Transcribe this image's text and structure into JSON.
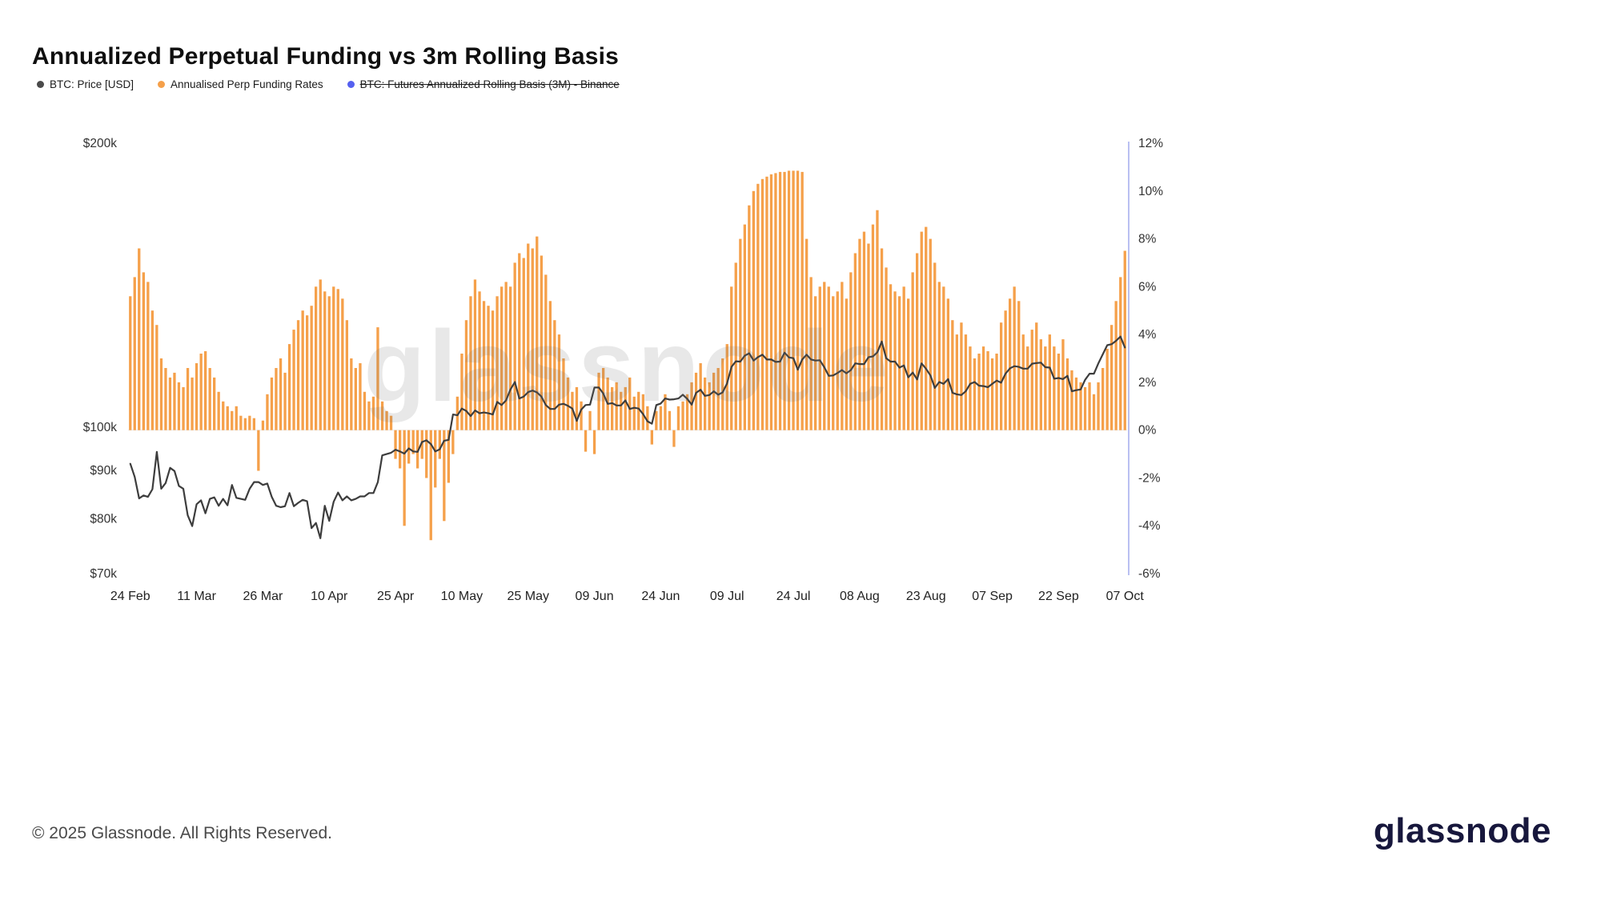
{
  "title": "Annualized Perpetual Funding vs 3m Rolling Basis",
  "watermark": "glassnode",
  "legend": [
    {
      "label": "BTC: Price [USD]",
      "color": "#4a4a4a",
      "disabled": false
    },
    {
      "label": "Annualised Perp Funding Rates",
      "color": "#f5a04a",
      "disabled": false
    },
    {
      "label": "BTC: Futures Annualized Rolling Basis (3M) - Binance",
      "color": "#5560f0",
      "disabled": true
    }
  ],
  "footer": {
    "copyright": "© 2025 Glassnode. All Rights Reserved.",
    "brand": "glassnode"
  },
  "chart_data": {
    "type": "bar",
    "title": "Annualized Perpetual Funding vs 3m Rolling Basis",
    "grid": false,
    "legend_position": "top-left",
    "x_start": "24 Feb",
    "x_end": "07 Oct",
    "x_frequency": "daily",
    "x_count": 226,
    "x_tick_every": 15,
    "x_tick_labels": [
      "24 Feb",
      "11 Mar",
      "26 Mar",
      "10 Apr",
      "25 Apr",
      "10 May",
      "25 May",
      "09 Jun",
      "24 Jun",
      "09 Jul",
      "24 Jul",
      "08 Aug",
      "23 Aug",
      "07 Sep",
      "22 Sep",
      "07 Oct"
    ],
    "left_axis": {
      "unit": "USD",
      "scale": "log",
      "min": 70,
      "max": 200,
      "tick_values": [
        200,
        100,
        90,
        80,
        70
      ],
      "labels": [
        "$200k",
        "$100k",
        "$90k",
        "$80k",
        "$70k"
      ]
    },
    "right_axis": {
      "unit": "%",
      "scale": "linear",
      "min": -6,
      "max": 12,
      "tick_values": [
        12,
        10,
        8,
        6,
        4,
        2,
        0,
        -2,
        -4,
        -6
      ],
      "labels": [
        "12%",
        "10%",
        "8%",
        "6%",
        "4%",
        "2%",
        "0%",
        "-2%",
        "-4%",
        "-6%"
      ]
    },
    "series": [
      {
        "name": "Annualised Perp Funding Rates",
        "type": "bar",
        "axis": "right",
        "color": "#f5a04a",
        "values": [
          5.6,
          6.4,
          7.6,
          6.6,
          6.2,
          5.0,
          4.4,
          3.0,
          2.6,
          2.2,
          2.4,
          2.0,
          1.8,
          2.6,
          2.2,
          2.8,
          3.2,
          3.3,
          2.6,
          2.2,
          1.6,
          1.2,
          1.0,
          0.8,
          1.0,
          0.6,
          0.5,
          0.6,
          0.5,
          -1.7,
          0.4,
          1.5,
          2.2,
          2.6,
          3.0,
          2.4,
          3.6,
          4.2,
          4.6,
          5.0,
          4.8,
          5.2,
          6.0,
          6.3,
          5.8,
          5.6,
          6.0,
          5.9,
          5.5,
          4.6,
          3.0,
          2.6,
          2.8,
          1.6,
          1.2,
          1.4,
          4.3,
          1.2,
          0.8,
          0.6,
          -1.2,
          -1.6,
          -4.0,
          -1.4,
          -1.0,
          -1.6,
          -1.2,
          -2.0,
          -4.6,
          -2.4,
          -1.2,
          -3.8,
          -2.2,
          -1.0,
          1.4,
          3.2,
          4.6,
          5.6,
          6.3,
          5.8,
          5.4,
          5.2,
          5.0,
          5.6,
          6.0,
          6.2,
          6.0,
          7.0,
          7.4,
          7.2,
          7.8,
          7.6,
          8.1,
          7.3,
          6.5,
          5.4,
          4.6,
          4.0,
          3.0,
          2.2,
          1.6,
          1.8,
          1.2,
          -0.9,
          0.8,
          -1.0,
          2.4,
          2.6,
          2.2,
          1.8,
          2.0,
          1.6,
          1.8,
          2.2,
          1.4,
          1.6,
          1.5,
          1.0,
          -0.6,
          0.8,
          1.0,
          1.5,
          0.8,
          -0.7,
          1.0,
          1.2,
          1.5,
          2.0,
          2.4,
          2.8,
          2.2,
          2.0,
          2.4,
          2.6,
          3.0,
          3.6,
          6.0,
          7.0,
          8.0,
          8.6,
          9.4,
          10.0,
          10.3,
          10.5,
          10.6,
          10.7,
          10.75,
          10.8,
          10.8,
          10.85,
          10.85,
          10.85,
          10.8,
          8.0,
          6.4,
          5.6,
          6.0,
          6.2,
          6.0,
          5.6,
          5.8,
          6.2,
          5.5,
          6.6,
          7.4,
          8.0,
          8.3,
          7.8,
          8.6,
          9.2,
          7.6,
          6.8,
          6.1,
          5.8,
          5.6,
          6.0,
          5.5,
          6.6,
          7.4,
          8.3,
          8.5,
          8.0,
          7.0,
          6.2,
          6.0,
          5.5,
          4.6,
          4.0,
          4.5,
          4.0,
          3.5,
          3.0,
          3.2,
          3.5,
          3.3,
          3.0,
          3.2,
          4.5,
          5.0,
          5.5,
          6.0,
          5.4,
          4.0,
          3.5,
          4.2,
          4.5,
          3.8,
          3.5,
          4.0,
          3.5,
          3.2,
          3.8,
          3.0,
          2.5,
          2.2,
          2.0,
          1.8,
          2.0,
          1.5,
          2.0,
          2.6,
          3.4,
          4.4,
          5.4,
          6.4,
          7.5
        ]
      },
      {
        "name": "BTC: Price [USD]",
        "type": "line",
        "axis": "left",
        "unit": "USD thousands",
        "color": "#3d3d3d",
        "values": [
          91.5,
          88.6,
          84.1,
          84.7,
          84.4,
          86.0,
          94.2,
          86.1,
          87.3,
          90.6,
          89.9,
          86.7,
          86.1,
          80.7,
          78.6,
          82.9,
          83.7,
          81.1,
          84.0,
          84.3,
          82.6,
          84.0,
          82.7,
          86.9,
          84.2,
          84.0,
          83.8,
          86.1,
          87.5,
          87.5,
          86.9,
          87.2,
          84.4,
          82.6,
          82.3,
          82.5,
          85.2,
          82.5,
          83.2,
          83.8,
          83.5,
          78.2,
          79.2,
          76.3,
          82.6,
          79.6,
          83.4,
          85.3,
          83.7,
          84.5,
          83.7,
          84.0,
          84.5,
          84.5,
          85.2,
          85.2,
          87.5,
          93.4,
          93.7,
          94.0,
          94.7,
          94.3,
          93.8,
          95.0,
          94.3,
          94.2,
          96.5,
          96.9,
          96.0,
          94.3,
          94.8,
          96.8,
          97.0,
          103.2,
          103.0,
          104.7,
          104.1,
          102.8,
          104.2,
          103.5,
          103.7,
          103.5,
          103.2,
          106.4,
          105.6,
          106.8,
          109.7,
          111.7,
          107.3,
          107.8,
          109.0,
          109.4,
          108.9,
          107.8,
          105.6,
          104.6,
          104.6,
          105.7,
          105.9,
          105.4,
          104.7,
          101.6,
          104.4,
          105.6,
          105.7,
          110.2,
          110.2,
          108.6,
          105.9,
          106.1,
          105.5,
          105.5,
          106.8,
          104.6,
          104.9,
          104.7,
          103.3,
          101.5,
          100.9,
          105.6,
          106.0,
          107.3,
          107.0,
          107.1,
          107.3,
          108.3,
          107.2,
          105.7,
          108.8,
          109.6,
          108.0,
          108.2,
          109.2,
          108.3,
          108.9,
          111.3,
          115.9,
          117.5,
          117.4,
          119.1,
          119.8,
          117.7,
          118.7,
          119.4,
          118.0,
          118.0,
          117.3,
          117.4,
          120.0,
          118.6,
          118.4,
          115.1,
          118.0,
          119.4,
          118.0,
          117.7,
          117.8,
          115.8,
          113.4,
          113.5,
          114.2,
          115.0,
          114.1,
          115.0,
          116.9,
          116.7,
          116.7,
          118.7,
          118.9,
          120.1,
          123.3,
          118.4,
          117.4,
          117.4,
          115.7,
          116.3,
          113.0,
          114.3,
          112.4,
          116.9,
          115.4,
          113.5,
          110.1,
          111.7,
          111.2,
          112.5,
          108.8,
          108.4,
          108.2,
          109.2,
          111.2,
          111.7,
          110.7,
          110.6,
          110.3,
          111.2,
          112.1,
          111.5,
          114.0,
          115.5,
          116.1,
          115.9,
          115.4,
          115.4,
          116.8,
          117.0,
          117.1,
          115.8,
          115.7,
          112.6,
          112.8,
          112.5,
          113.4,
          109.2,
          109.5,
          109.7,
          112.3,
          114.0,
          114.0,
          116.9,
          119.5,
          122.2,
          122.5,
          123.5,
          124.8,
          121.5
        ]
      },
      {
        "name": "BTC: Futures Annualized Rolling Basis (3M) - Binance",
        "type": "line",
        "axis": "right",
        "color": "#5560f0",
        "visible": false,
        "values": []
      }
    ]
  }
}
